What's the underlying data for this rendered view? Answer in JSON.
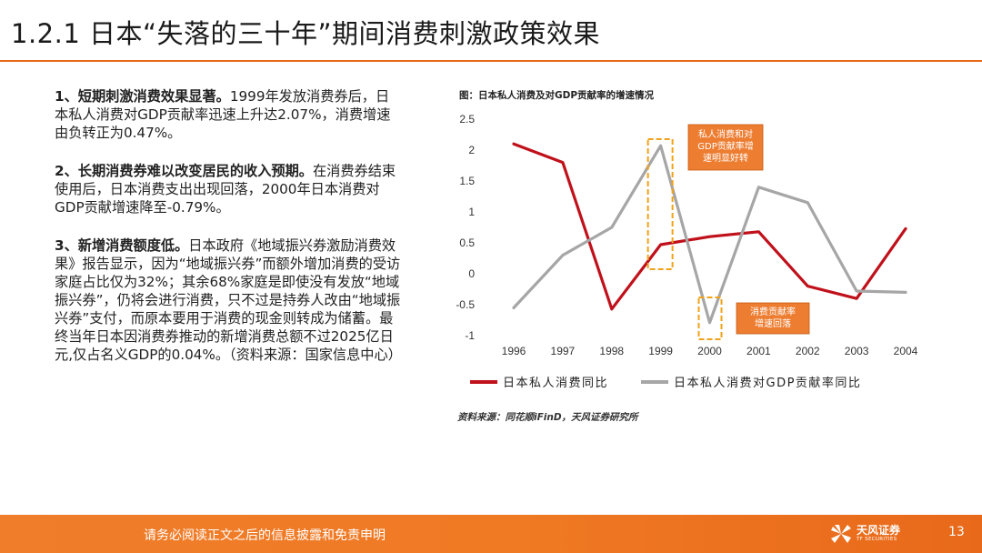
{
  "slide": {
    "title": "1.2.1 日本“失落的三十年”期间消费刺激政策效果",
    "page_number": "13"
  },
  "paragraphs": [
    {
      "heading": "1、短期刺激消费效果显著。",
      "body": "1999年发放消费券后，日本私人消费对GDP贡献率迅速上升达2.07%，消费增速由负转正为0.47%。"
    },
    {
      "heading": "2、长期消费券难以改变居民的收入预期。",
      "body": "在消费券结束使用后，日本消费支出出现回落，2000年日本消费对GDP贡献增速降至-0.79%。"
    },
    {
      "heading": "3、新增消费额度低。",
      "body": "日本政府《地域振兴券激励消费效果》报告显示，因为“地域振兴券”而额外增加消费的受访家庭占比仅为32%；其余68%家庭是即使没有发放“地域振兴券”，仍将会进行消费，只不过是持券人改由“地域振兴券”支付，而原本要用于消费的现金则转成为储蓄。最终当年日本因消费券推动的新增消费总额不过2025亿日元,仅占名义GDP的0.04%。（资料来源：国家信息中心）"
    }
  ],
  "chart_caption": "图：日本私人消费及对GDP贡献率的增速情况",
  "chart_source": "资料来源：同花顺iFinD，天风证券研究所",
  "chart_data": {
    "type": "line",
    "title": "图：日本私人消费及对GDP贡献率的增速情况",
    "x": [
      "1996",
      "1997",
      "1998",
      "1999",
      "2000",
      "2001",
      "2002",
      "2003",
      "2004"
    ],
    "y_ticks": [
      "2.5",
      "2",
      "1.5",
      "1",
      "0.5",
      "0",
      "-0.5",
      "-1"
    ],
    "ylim": [
      -1,
      2.5
    ],
    "grid": false,
    "legend_position": "bottom",
    "series": [
      {
        "name": "日本私人消费同比",
        "color": "#c0111b",
        "values": [
          2.1,
          1.8,
          -0.57,
          0.47,
          0.6,
          0.68,
          -0.2,
          -0.4,
          0.73
        ]
      },
      {
        "name": "日本私人消费对GDP贡献率同比",
        "color": "#a6a6a6",
        "values": [
          -0.55,
          0.3,
          0.75,
          2.07,
          -0.79,
          1.4,
          1.15,
          -0.28,
          -0.3
        ]
      }
    ],
    "annotations": [
      {
        "text": [
          "私人消费和对",
          "GDP贡献率增",
          "速明显好转"
        ],
        "x": "1999"
      },
      {
        "text": [
          "消费贡献率",
          "增速回落"
        ],
        "x": "2000"
      }
    ]
  },
  "footer": {
    "disclaimer": "请务必阅读正文之后的信息披露和免责申明",
    "logo_name": "天风证券",
    "logo_sub": "TF SECURITIES"
  },
  "colors": {
    "accent": "#e8691a",
    "red_series": "#c0111b",
    "grey_series": "#a6a6a6",
    "callout_fill": "#ed7d31"
  }
}
